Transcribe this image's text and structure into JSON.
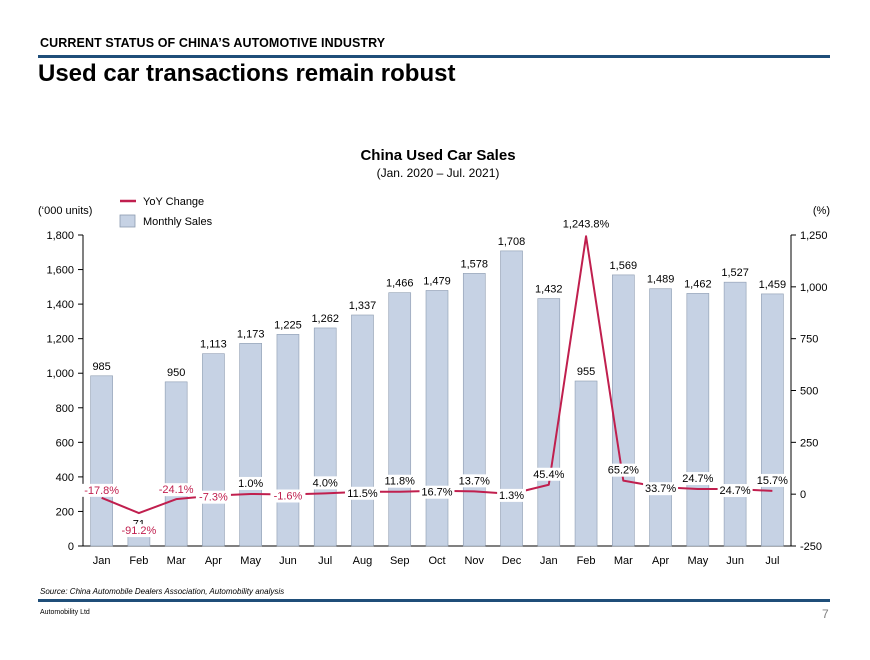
{
  "header": {
    "kicker": "CURRENT STATUS OF CHINA’S AUTOMOTIVE INDUSTRY",
    "title": "Used car transactions remain robust"
  },
  "footer": {
    "source": "Source: China Automobile Dealers Association, Automobility analysis",
    "company": "Automobility Ltd",
    "page_number": "7"
  },
  "colors": {
    "bar_fill": "#c6d2e4",
    "bar_stroke": "#8c9bb0",
    "line": "#c01f4e",
    "rule": "#1f4e79"
  },
  "chart_data": {
    "type": "bar",
    "title": "China Used Car Sales",
    "subtitle": "(Jan. 2020 – Jul. 2021)",
    "left_axis_label": "(‘000 units)",
    "right_axis_label": "(%)",
    "categories": [
      "Jan",
      "Feb",
      "Mar",
      "Apr",
      "May",
      "Jun",
      "Jul",
      "Aug",
      "Sep",
      "Oct",
      "Nov",
      "Dec",
      "Jan",
      "Feb",
      "Mar",
      "Apr",
      "May",
      "Jun",
      "Jul"
    ],
    "legend": [
      "YoY Change",
      "Monthly Sales"
    ],
    "ylim_left": [
      0,
      1800
    ],
    "ylim_right": [
      -250,
      1250
    ],
    "left_ticks": [
      "0",
      "200",
      "400",
      "600",
      "800",
      "1,000",
      "1,200",
      "1,400",
      "1,600",
      "1,800"
    ],
    "right_ticks": [
      "-250",
      "0",
      "250",
      "500",
      "750",
      "1,000",
      "1,250"
    ],
    "series": [
      {
        "name": "Monthly Sales",
        "type": "bar",
        "axis": "left",
        "values": [
          985,
          71,
          950,
          1113,
          1173,
          1225,
          1262,
          1337,
          1466,
          1479,
          1578,
          1708,
          1432,
          955,
          1569,
          1489,
          1462,
          1527,
          1459
        ],
        "labels": [
          "985",
          "71",
          "950",
          "1,113",
          "1,173",
          "1,225",
          "1,262",
          "1,337",
          "1,466",
          "1,479",
          "1,578",
          "1,708",
          "1,432",
          "955",
          "1,569",
          "1,489",
          "1,462",
          "1,527",
          "1,459"
        ]
      },
      {
        "name": "YoY Change",
        "type": "line",
        "axis": "right",
        "values": [
          -17.8,
          -91.2,
          -24.1,
          -7.3,
          1.0,
          -1.6,
          4.0,
          11.5,
          11.8,
          16.7,
          13.7,
          1.3,
          45.4,
          1243.8,
          65.2,
          33.7,
          24.7,
          24.7,
          15.7
        ],
        "labels": [
          "-17.8%",
          "-91.2%",
          "-24.1%",
          "-7.3%",
          "1.0%",
          "-1.6%",
          "4.0%",
          "11.5%",
          "11.8%",
          "16.7%",
          "13.7%",
          "1.3%",
          "45.4%",
          "1,243.8%",
          "65.2%",
          "33.7%",
          "24.7%",
          "24.7%",
          "15.7%"
        ]
      }
    ],
    "legend_placement": "top-left",
    "grid": false
  }
}
